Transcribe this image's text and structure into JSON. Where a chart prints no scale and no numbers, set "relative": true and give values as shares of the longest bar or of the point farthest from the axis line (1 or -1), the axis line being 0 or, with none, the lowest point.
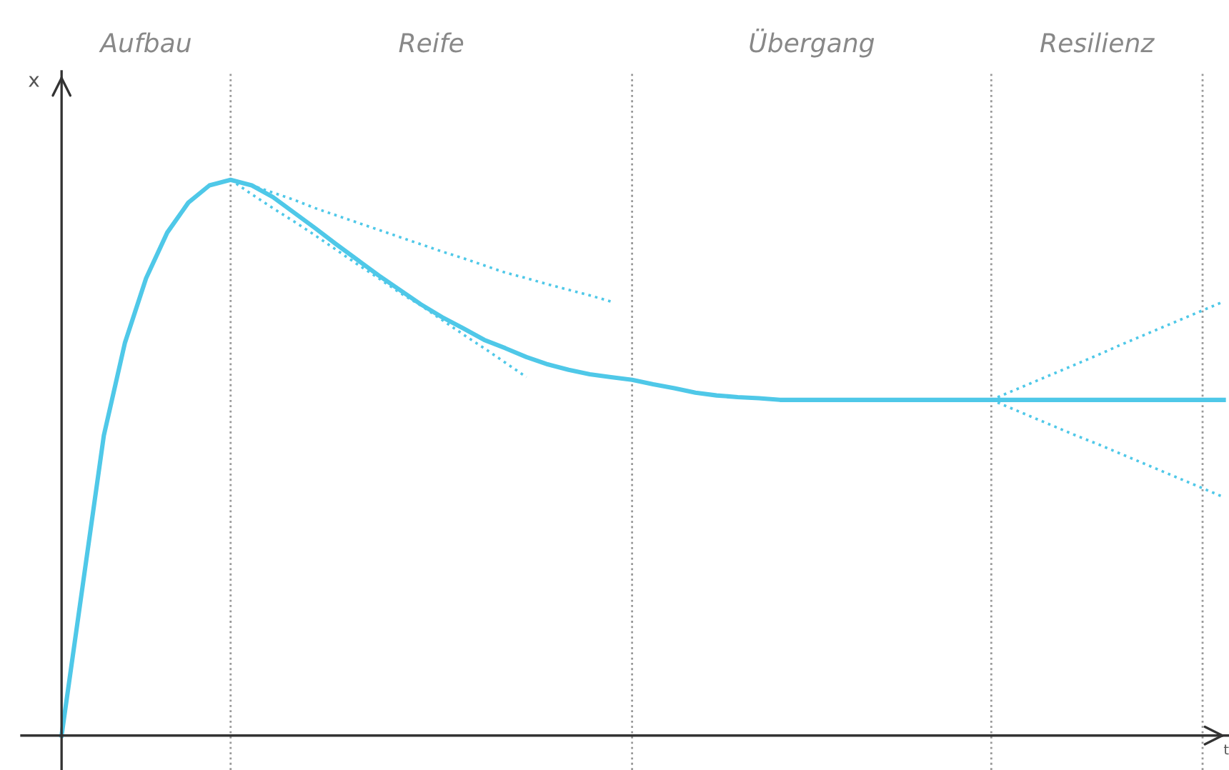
{
  "chart_data": {
    "type": "line",
    "relative": true,
    "xlabel": "t",
    "ylabel": "x",
    "marker": "none",
    "categories": [
      null,
      null,
      null,
      null,
      null,
      null,
      null,
      null,
      null,
      null,
      null,
      null,
      null,
      null,
      null,
      null,
      null,
      null,
      null,
      null,
      null,
      null,
      null,
      null,
      null,
      null,
      null,
      null,
      null,
      null,
      null,
      null,
      null,
      null,
      null,
      null,
      null,
      null,
      null,
      null,
      null,
      null,
      null,
      null,
      null,
      null,
      null,
      null,
      null,
      null,
      null,
      null,
      null,
      null,
      null,
      null
    ],
    "annotations": [
      "Aufbau",
      "Reife",
      "Übergang",
      "Resilienz"
    ],
    "grid": "x",
    "series": [
      {
        "color": "#4fc8e8",
        "line_style": "solid",
        "values": [
          0,
          0.27,
          0.54,
          0.707,
          0.823,
          0.905,
          0.959,
          0.99,
          1.0,
          0.99,
          0.969,
          0.941,
          0.913,
          0.884,
          0.856,
          0.828,
          0.802,
          0.776,
          0.753,
          0.733,
          0.712,
          0.697,
          0.681,
          0.668,
          0.658,
          0.65,
          0.645,
          0.64,
          0.632,
          0.625,
          0.617,
          0.612,
          0.609,
          0.607,
          0.604,
          0.604,
          0.604,
          0.604,
          0.604,
          0.604,
          0.604,
          0.604,
          0.604,
          0.604,
          0.604,
          0.604,
          0.604,
          0.604,
          0.604,
          0.604,
          0.604,
          0.604,
          0.604,
          0.604,
          0.604,
          0.604
        ]
      },
      {
        "color": "#4fc8e8",
        "line_style": "dotted",
        "values": [
          null,
          null,
          null,
          null,
          null,
          null,
          null,
          null,
          1.0,
          0.99,
          0.977,
          0.964,
          0.949,
          0.936,
          0.923,
          0.91,
          0.897,
          0.884,
          0.871,
          0.859,
          0.846,
          0.833,
          0.823,
          0.812,
          0.802,
          0.792,
          0.781,
          null,
          null,
          null,
          null,
          null,
          null,
          null,
          null,
          null,
          null,
          null,
          null,
          null,
          null,
          null,
          null,
          null,
          null,
          null,
          null,
          null,
          null,
          null,
          null,
          null,
          null,
          null,
          null,
          null
        ]
      },
      {
        "color": "#4fc8e8",
        "line_style": "dotted",
        "values": [
          null,
          null,
          null,
          null,
          null,
          null,
          null,
          null,
          1.0,
          0.974,
          0.949,
          0.925,
          0.9,
          0.874,
          0.848,
          0.823,
          0.797,
          0.774,
          0.748,
          0.722,
          0.697,
          0.671,
          0.645,
          null,
          null,
          null,
          null,
          null,
          null,
          null,
          null,
          null,
          null,
          null,
          null,
          null,
          null,
          null,
          null,
          null,
          null,
          null,
          null,
          null,
          null,
          null,
          null,
          null,
          null,
          null,
          null,
          null,
          null,
          null,
          null,
          null
        ]
      },
      {
        "color": "#4fc8e8",
        "line_style": "dotted",
        "values": [
          null,
          null,
          null,
          null,
          null,
          null,
          null,
          null,
          null,
          null,
          null,
          null,
          null,
          null,
          null,
          null,
          null,
          null,
          null,
          null,
          null,
          null,
          null,
          null,
          null,
          null,
          null,
          null,
          null,
          null,
          null,
          null,
          null,
          null,
          null,
          null,
          null,
          null,
          null,
          null,
          null,
          null,
          null,
          null,
          0.604,
          0.62,
          0.636,
          0.652,
          0.668,
          0.684,
          0.701,
          0.717,
          0.733,
          0.749,
          0.765,
          0.781
        ]
      },
      {
        "color": "#4fc8e8",
        "line_style": "dotted",
        "values": [
          null,
          null,
          null,
          null,
          null,
          null,
          null,
          null,
          null,
          null,
          null,
          null,
          null,
          null,
          null,
          null,
          null,
          null,
          null,
          null,
          null,
          null,
          null,
          null,
          null,
          null,
          null,
          null,
          null,
          null,
          null,
          null,
          null,
          null,
          null,
          null,
          null,
          null,
          null,
          null,
          null,
          null,
          null,
          null,
          0.604,
          0.588,
          0.572,
          0.556,
          0.54,
          0.525,
          0.509,
          0.493,
          0.477,
          0.461,
          0.445,
          0.429
        ]
      }
    ]
  }
}
